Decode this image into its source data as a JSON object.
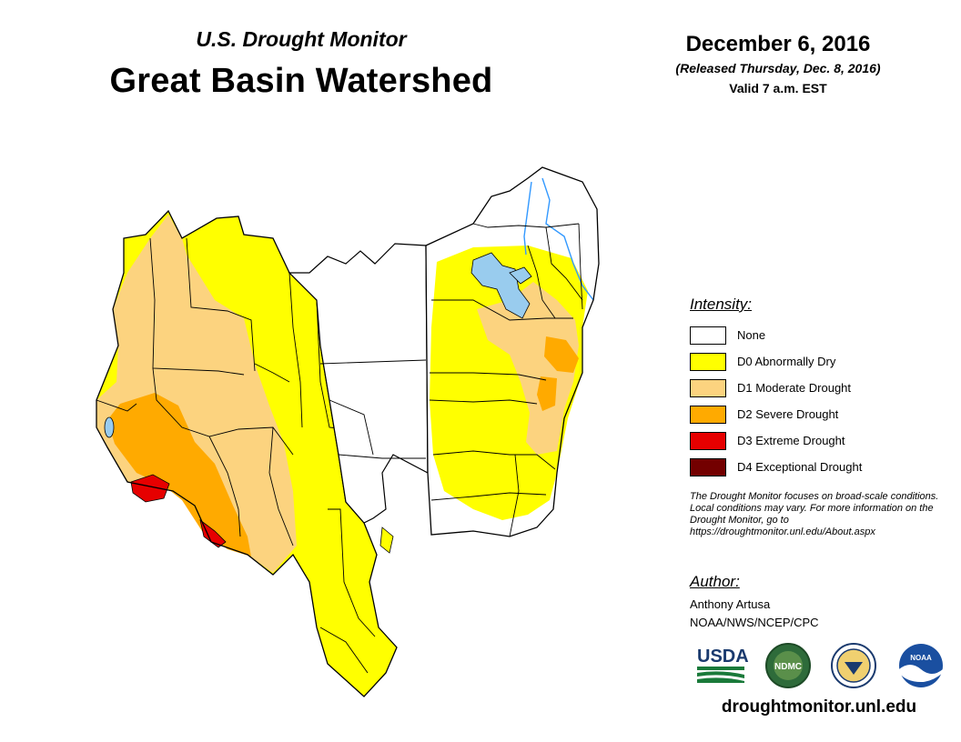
{
  "header": {
    "subtitle": "U.S. Drought Monitor",
    "title": "Great Basin Watershed",
    "date": "December 6, 2016",
    "released": "(Released Thursday, Dec. 8, 2016)",
    "valid": "Valid 7 a.m. EST"
  },
  "legend": {
    "title": "Intensity:",
    "items": [
      {
        "label": "None",
        "color": "#ffffff"
      },
      {
        "label": "D0 Abnormally Dry",
        "color": "#ffff00"
      },
      {
        "label": "D1 Moderate Drought",
        "color": "#fcd37f"
      },
      {
        "label": "D2 Severe Drought",
        "color": "#ffaa00"
      },
      {
        "label": "D3 Extreme Drought",
        "color": "#e60000"
      },
      {
        "label": "D4 Exceptional Drought",
        "color": "#730000"
      }
    ]
  },
  "note": "The Drought Monitor focuses on broad-scale conditions. Local conditions may vary. For more information on the Drought Monitor, go to https://droughtmonitor.unl.edu/About.aspx",
  "author": {
    "heading": "Author:",
    "name": "Anthony Artusa",
    "org": "NOAA/NWS/NCEP/CPC"
  },
  "logos": {
    "usda": "USDA",
    "ndmc": "NDMC",
    "noaa": "NOAA"
  },
  "footer_url": "droughtmonitor.unl.edu",
  "map_colors": {
    "water": "#99ccee",
    "river": "#3399ff",
    "border": "#000000"
  }
}
